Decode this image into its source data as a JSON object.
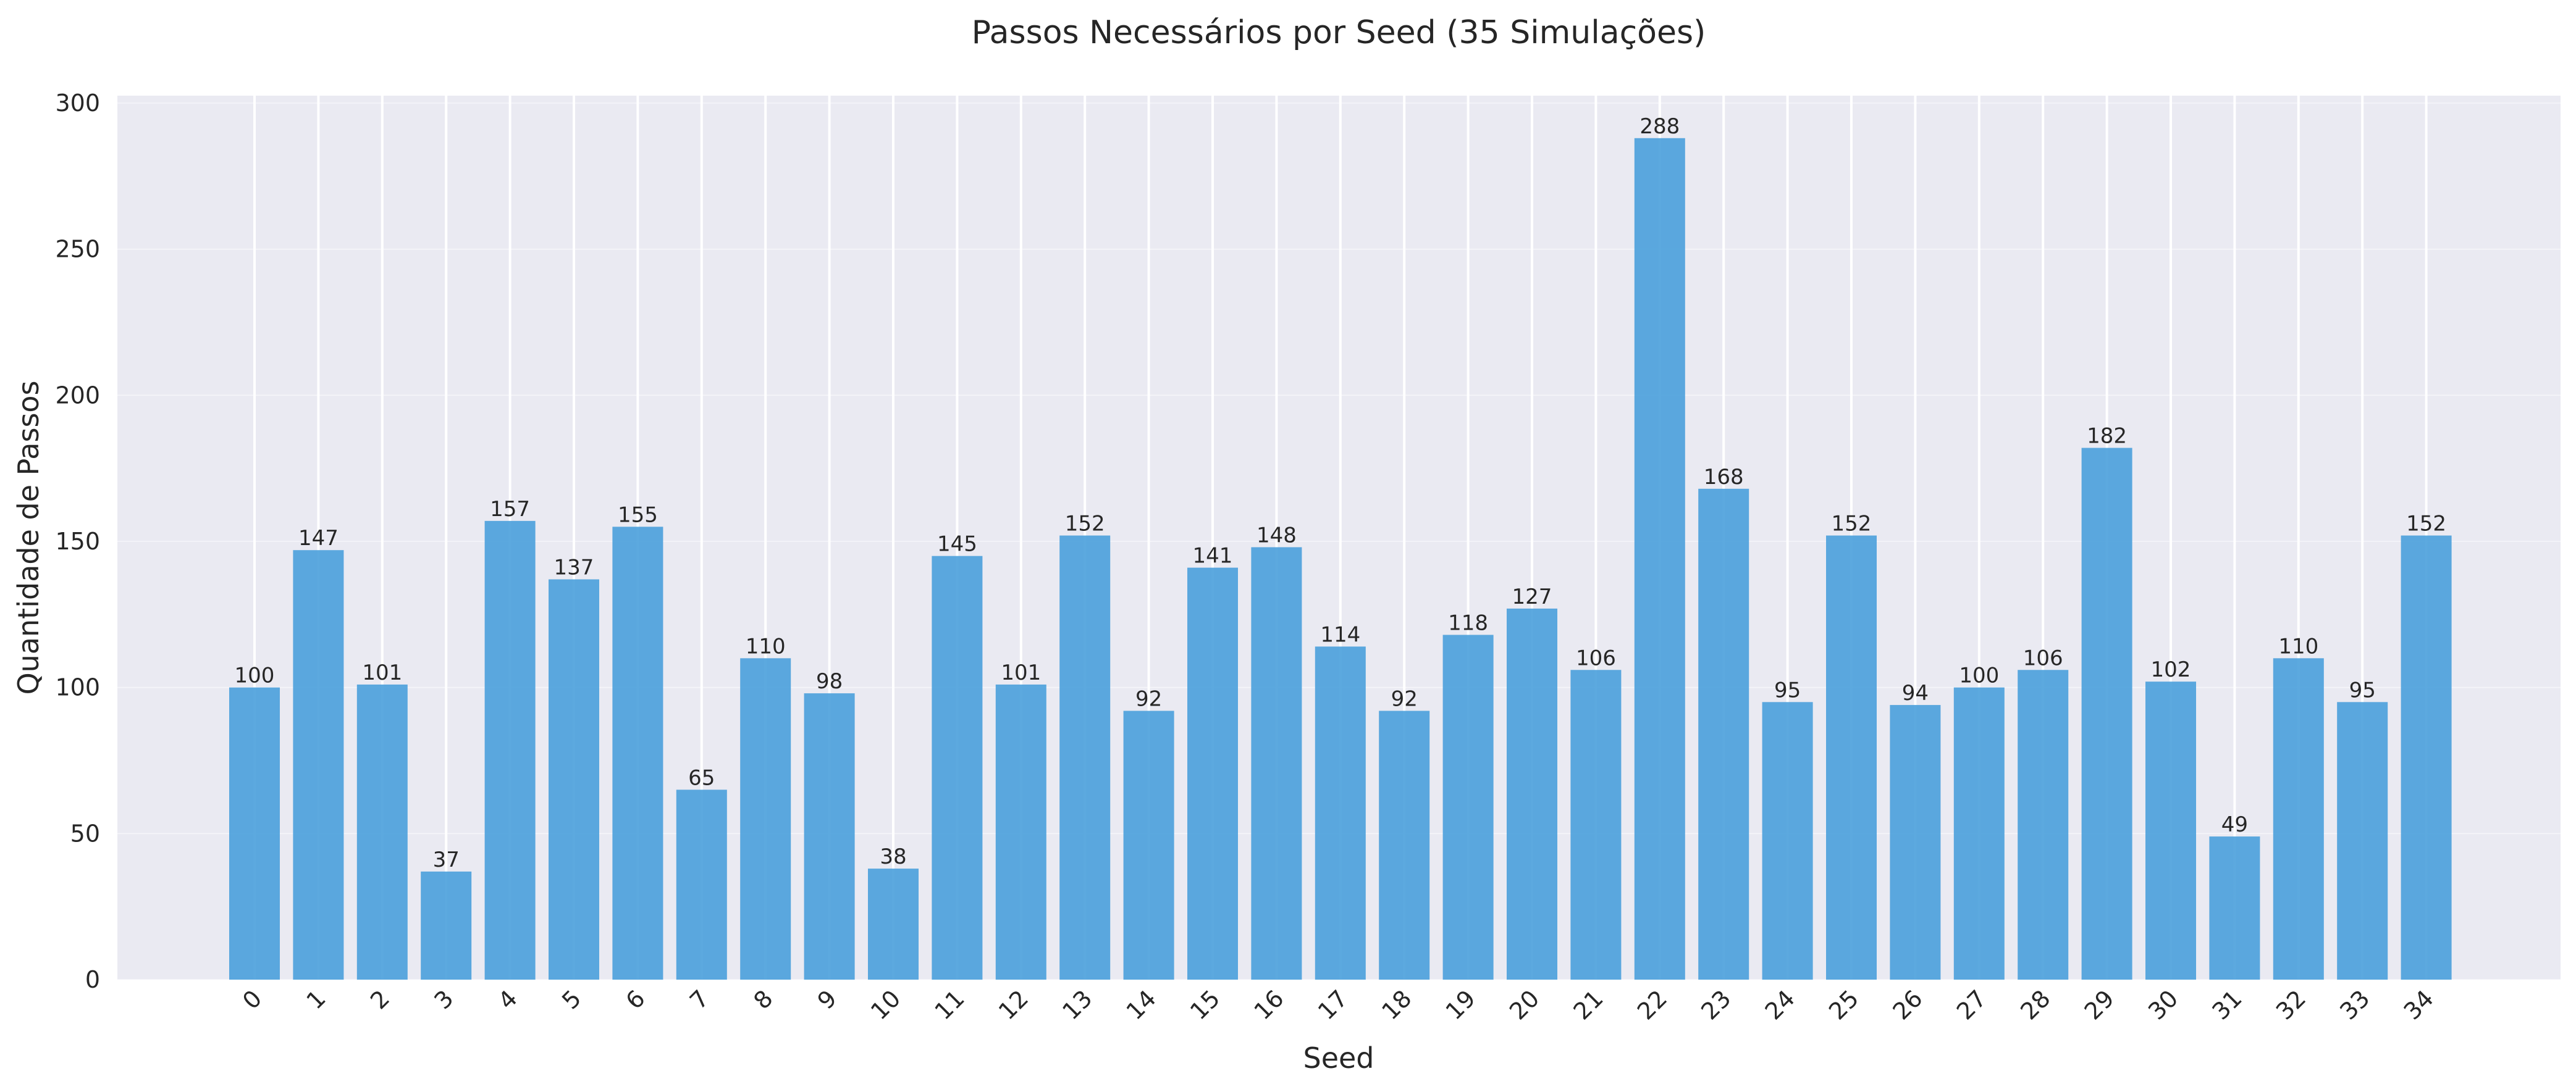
{
  "chart_data": {
    "type": "bar",
    "title": "Passos Necessários por Seed (35 Simulações)",
    "xlabel": "Seed",
    "ylabel": "Quantidade de Passos",
    "categories": [
      "0",
      "1",
      "2",
      "3",
      "4",
      "5",
      "6",
      "7",
      "8",
      "9",
      "10",
      "11",
      "12",
      "13",
      "14",
      "15",
      "16",
      "17",
      "18",
      "19",
      "20",
      "21",
      "22",
      "23",
      "24",
      "25",
      "26",
      "27",
      "28",
      "29",
      "30",
      "31",
      "32",
      "33",
      "34"
    ],
    "values": [
      100,
      147,
      101,
      37,
      157,
      137,
      155,
      65,
      110,
      98,
      38,
      145,
      101,
      152,
      92,
      141,
      148,
      114,
      92,
      118,
      127,
      106,
      288,
      168,
      95,
      152,
      94,
      100,
      106,
      182,
      102,
      49,
      110,
      95,
      152
    ],
    "ylim": [
      0,
      300
    ],
    "yticks": [
      0,
      50,
      100,
      150,
      200,
      250,
      300
    ],
    "ytick_labels": [
      "0",
      "50",
      "100",
      "150",
      "200",
      "250",
      "300"
    ],
    "xtick_rotation": 45,
    "grid": true,
    "bar_color": "#4aa0dc",
    "plot_background": "#eaeaf2"
  }
}
